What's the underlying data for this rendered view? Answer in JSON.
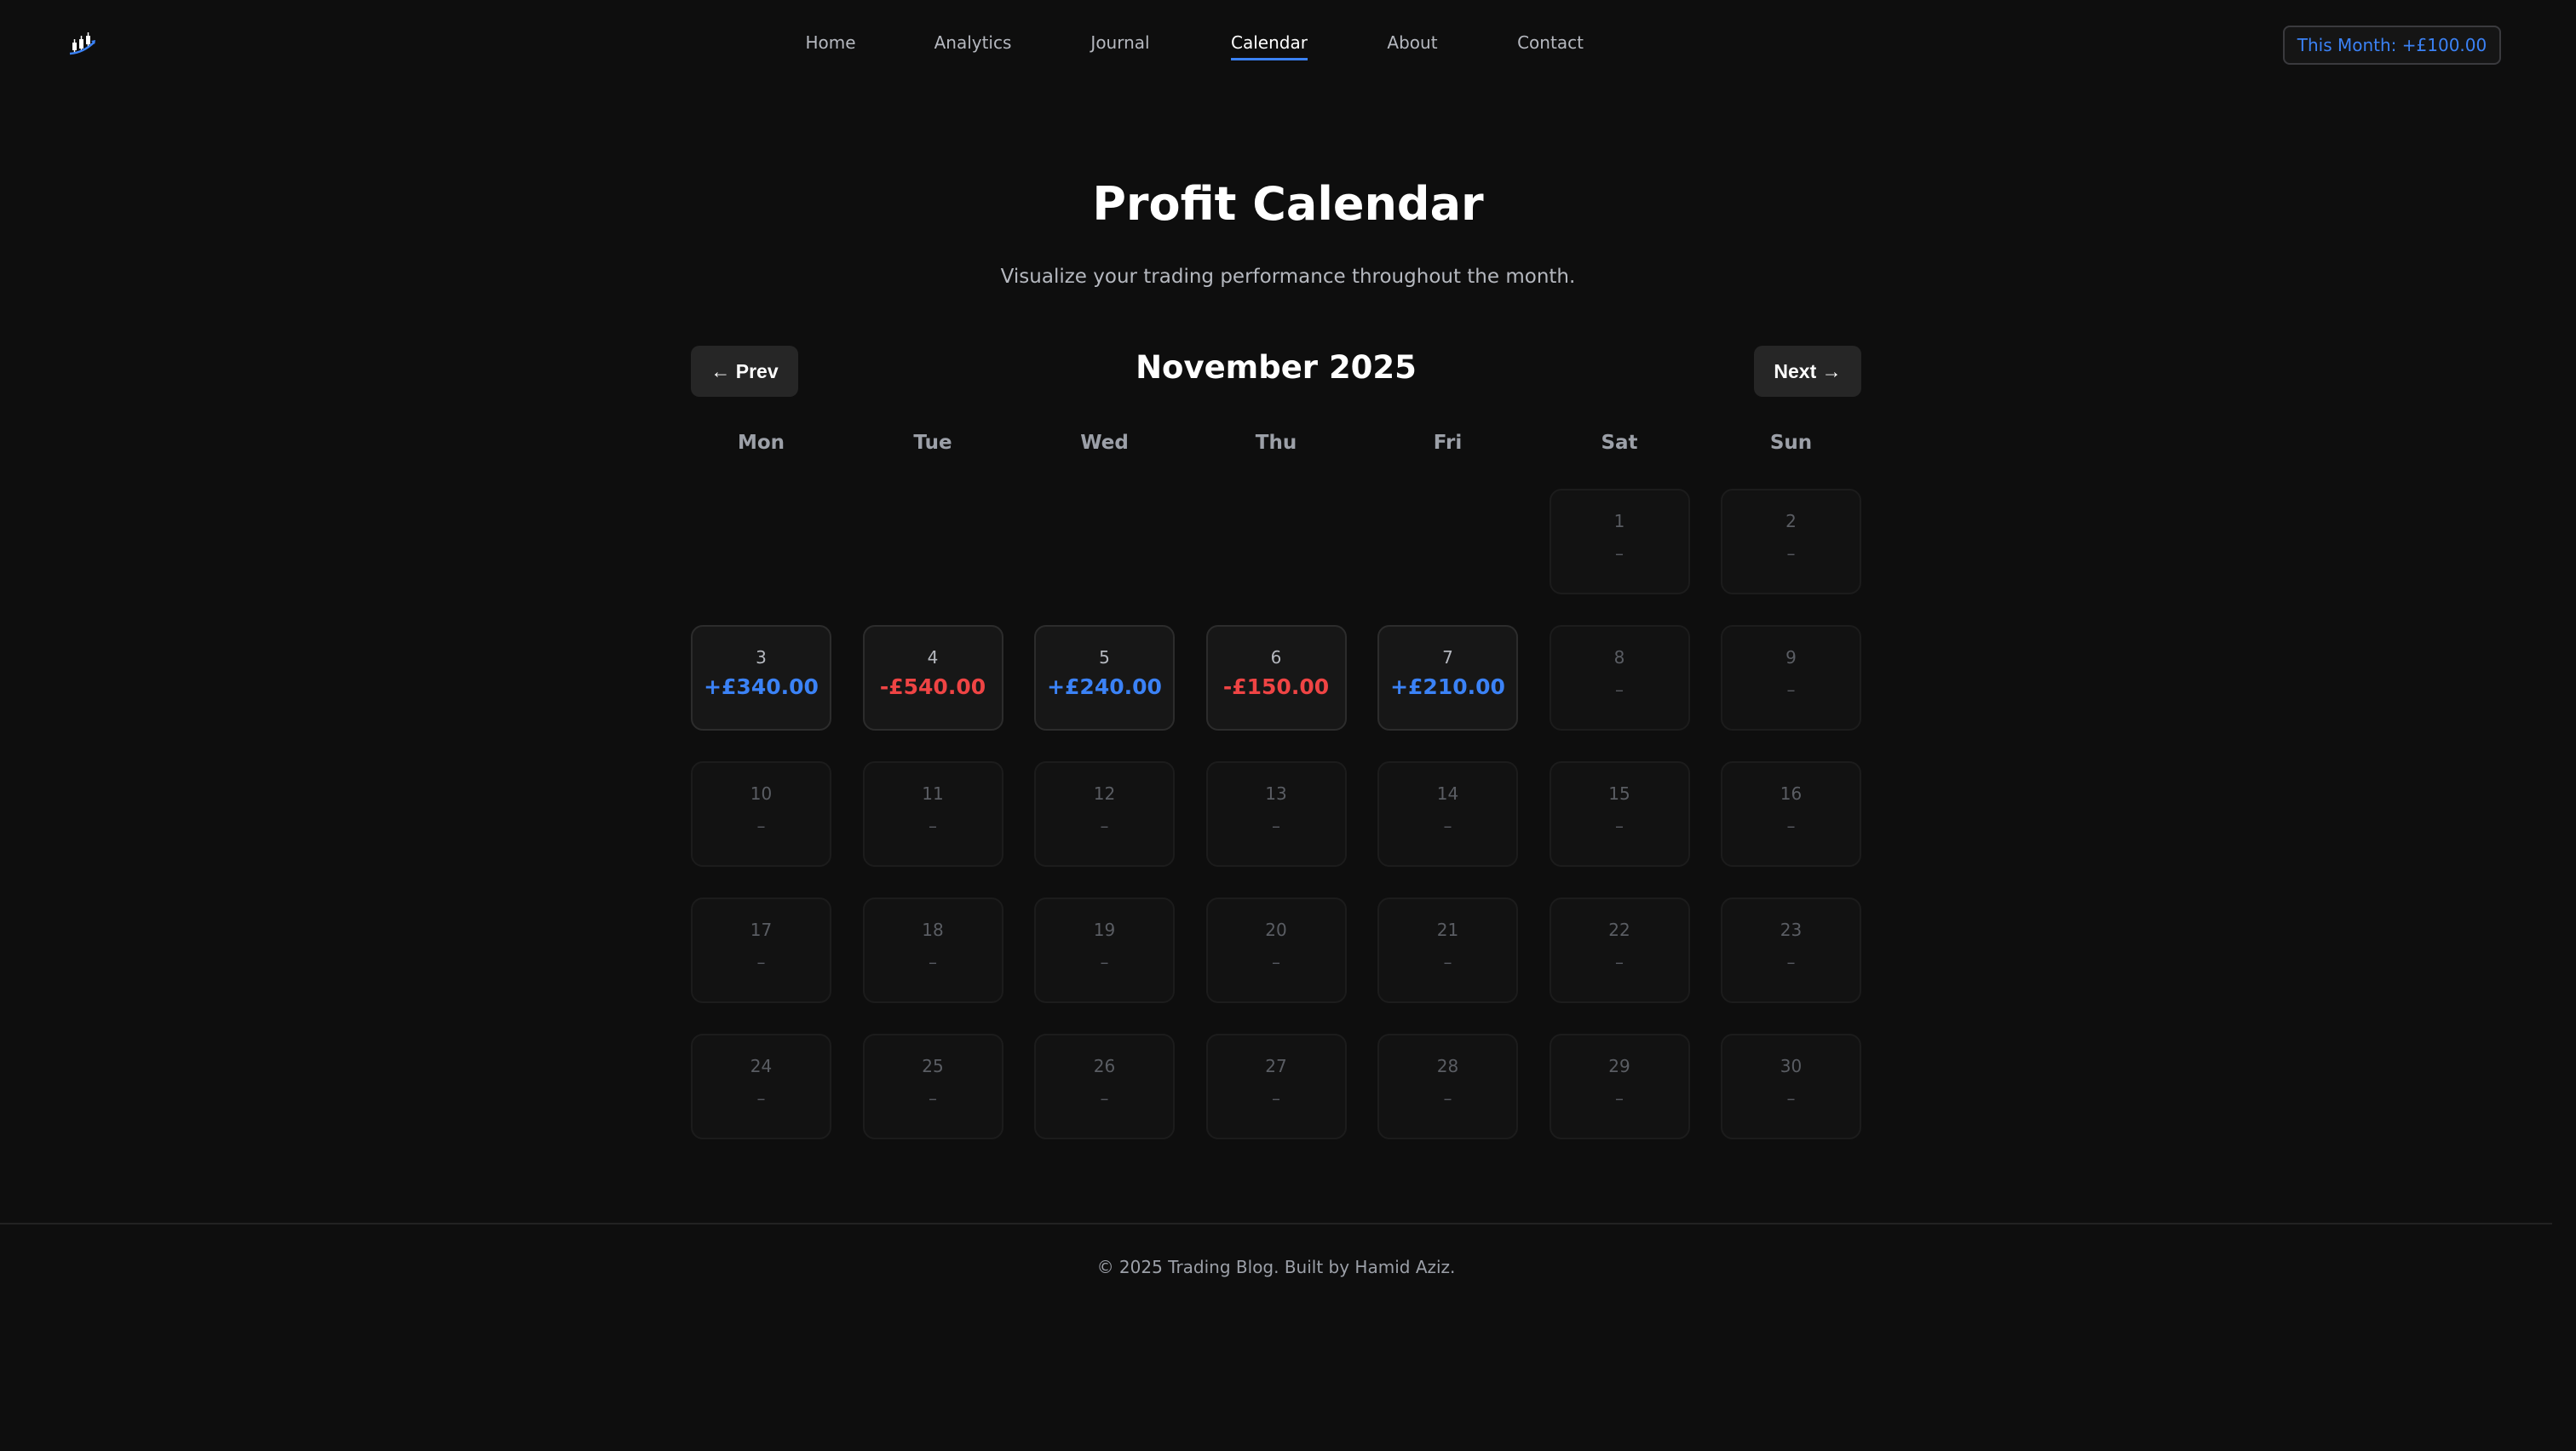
{
  "nav": {
    "logo": "candlestick-chart-logo",
    "links": [
      {
        "label": "Home"
      },
      {
        "label": "Analytics"
      },
      {
        "label": "Journal"
      },
      {
        "label": "Calendar",
        "active": true
      },
      {
        "label": "About"
      },
      {
        "label": "Contact"
      }
    ],
    "badge": "This Month: +£100.00"
  },
  "page": {
    "title": "Profit Calendar",
    "subtitle": "Visualize your trading performance throughout the month."
  },
  "calendar": {
    "prev": "← Prev",
    "next": "Next →",
    "month": "November 2025",
    "weekdays": [
      "Mon",
      "Tue",
      "Wed",
      "Thu",
      "Fri",
      "Sat",
      "Sun"
    ],
    "leading_blanks": 5,
    "days": [
      {
        "d": "1",
        "v": "–"
      },
      {
        "d": "2",
        "v": "–"
      },
      {
        "d": "3",
        "v": "+£340.00",
        "s": "pos"
      },
      {
        "d": "4",
        "v": "-£540.00",
        "s": "neg"
      },
      {
        "d": "5",
        "v": "+£240.00",
        "s": "pos"
      },
      {
        "d": "6",
        "v": "-£150.00",
        "s": "neg"
      },
      {
        "d": "7",
        "v": "+£210.00",
        "s": "pos"
      },
      {
        "d": "8",
        "v": "–"
      },
      {
        "d": "9",
        "v": "–"
      },
      {
        "d": "10",
        "v": "–"
      },
      {
        "d": "11",
        "v": "–"
      },
      {
        "d": "12",
        "v": "–"
      },
      {
        "d": "13",
        "v": "–"
      },
      {
        "d": "14",
        "v": "–"
      },
      {
        "d": "15",
        "v": "–"
      },
      {
        "d": "16",
        "v": "–"
      },
      {
        "d": "17",
        "v": "–"
      },
      {
        "d": "18",
        "v": "–"
      },
      {
        "d": "19",
        "v": "–"
      },
      {
        "d": "20",
        "v": "–"
      },
      {
        "d": "21",
        "v": "–"
      },
      {
        "d": "22",
        "v": "–"
      },
      {
        "d": "23",
        "v": "–"
      },
      {
        "d": "24",
        "v": "–"
      },
      {
        "d": "25",
        "v": "–"
      },
      {
        "d": "26",
        "v": "–"
      },
      {
        "d": "27",
        "v": "–"
      },
      {
        "d": "28",
        "v": "–"
      },
      {
        "d": "29",
        "v": "–"
      },
      {
        "d": "30",
        "v": "–"
      }
    ]
  },
  "colors": {
    "profit": "#3b82f6",
    "loss": "#ef4444",
    "background": "#0e0e0e"
  },
  "footer": "© 2025 Trading Blog. Built by Hamid Aziz."
}
